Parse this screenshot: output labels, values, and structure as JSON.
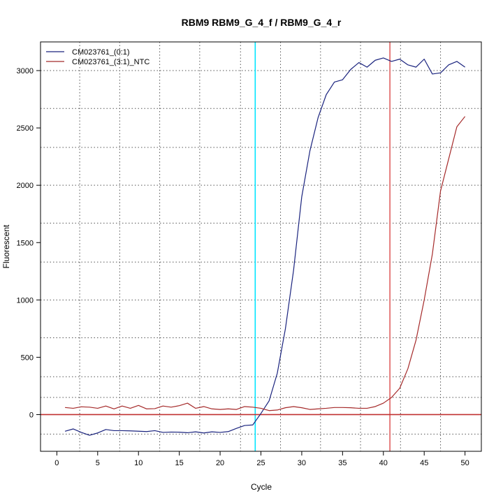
{
  "chart_data": {
    "type": "line",
    "title": "RBM9  RBM9_G_4_f / RBM9_G_4_r",
    "xlabel": "Cycle",
    "ylabel": "Fluorescent",
    "xlim": [
      -2,
      52
    ],
    "ylim": [
      -320,
      3250
    ],
    "x_ticks": [
      0,
      5,
      10,
      15,
      20,
      25,
      30,
      35,
      40,
      45,
      50
    ],
    "y_ticks": [
      0,
      500,
      1000,
      1500,
      2000,
      2500,
      3000
    ],
    "grid": true,
    "legend_position": "top-left",
    "x_grid": [
      2.8,
      7.7,
      12.6,
      17.5,
      22.5,
      27.4,
      32.3,
      37.2,
      42.1,
      47.0
    ],
    "y_grid": [
      -170,
      150,
      330,
      670,
      1000,
      1330,
      1670,
      2000,
      2330,
      2670,
      3000
    ],
    "threshold": 0,
    "vlines": [
      {
        "x": 24.3,
        "color": "#00e5ff"
      },
      {
        "x": 40.8,
        "color": "#e06060"
      }
    ],
    "colors": {
      "threshold": "#c03030"
    },
    "x": [
      1,
      2,
      3,
      4,
      5,
      6,
      7,
      8,
      9,
      10,
      11,
      12,
      13,
      14,
      15,
      16,
      17,
      18,
      19,
      20,
      21,
      22,
      23,
      24,
      25,
      26,
      27,
      28,
      29,
      30,
      31,
      32,
      33,
      34,
      35,
      36,
      37,
      38,
      39,
      40,
      41,
      42,
      43,
      44,
      45,
      46,
      47,
      48,
      49,
      50
    ],
    "series": [
      {
        "name": "CM023761_(0:1)",
        "color": "#1a237e",
        "values": [
          -145,
          -125,
          -155,
          -180,
          -160,
          -130,
          -140,
          -140,
          -142,
          -145,
          -148,
          -140,
          -155,
          -152,
          -153,
          -158,
          -150,
          -160,
          -150,
          -155,
          -148,
          -120,
          -95,
          -90,
          10,
          120,
          360,
          750,
          1260,
          1900,
          2300,
          2590,
          2790,
          2900,
          2920,
          3010,
          3070,
          3030,
          3090,
          3110,
          3080,
          3100,
          3050,
          3030,
          3100,
          2970,
          2980,
          3050,
          3080,
          3030
        ]
      },
      {
        "name": "CM023761_(3:1)_NTC",
        "color": "#a52a2a",
        "values": [
          62,
          55,
          68,
          65,
          55,
          75,
          50,
          75,
          55,
          80,
          50,
          52,
          75,
          65,
          78,
          100,
          55,
          70,
          50,
          45,
          50,
          45,
          70,
          65,
          55,
          35,
          40,
          60,
          70,
          60,
          45,
          50,
          55,
          62,
          62,
          60,
          55,
          55,
          70,
          100,
          150,
          230,
          400,
          650,
          1000,
          1400,
          1950,
          2230,
          2510,
          2600
        ]
      }
    ]
  }
}
